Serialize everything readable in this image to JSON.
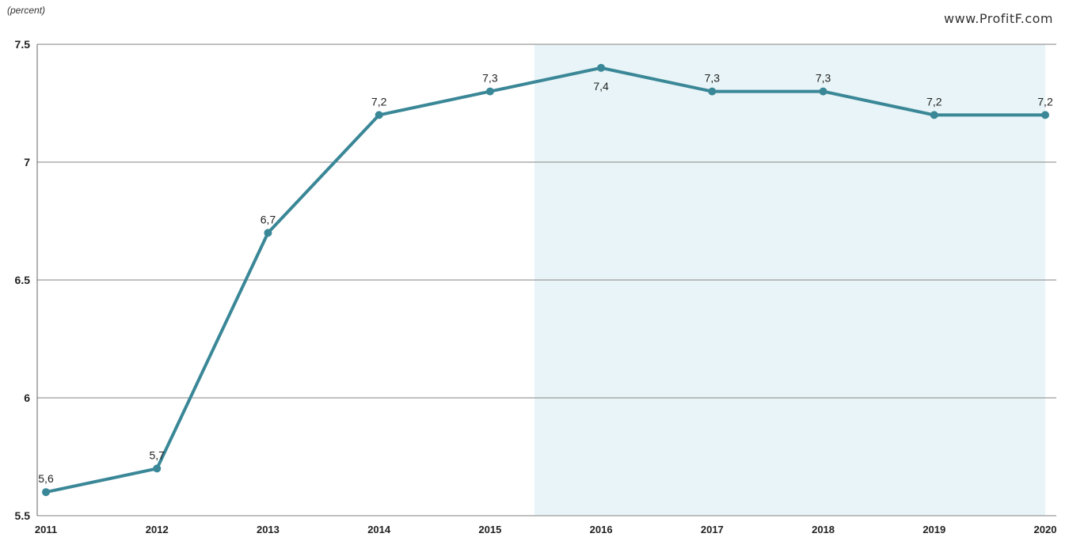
{
  "chart_data": {
    "type": "line",
    "unit_label": "(percent)",
    "watermark": "www.ProfitF.com",
    "categories": [
      "2011",
      "2012",
      "2013",
      "2014",
      "2015",
      "2016",
      "2017",
      "2018",
      "2019",
      "2020"
    ],
    "series": [
      {
        "values": [
          5.6,
          5.7,
          6.7,
          7.2,
          7.3,
          7.4,
          7.3,
          7.3,
          7.2,
          7.2
        ],
        "labels": [
          "5,6",
          "5,7",
          "6,7",
          "7,2",
          "7,3",
          "7,4",
          "7,3",
          "7,3",
          "7,2",
          "7,2"
        ],
        "color": "#3a8797"
      }
    ],
    "y_ticks": [
      "7.5",
      "7",
      "6.5",
      "6",
      "5.5"
    ],
    "y_tick_values": [
      7.5,
      7.0,
      6.5,
      6.0,
      5.5
    ],
    "ylim": [
      5.5,
      7.5
    ],
    "grid": true,
    "forecast_shading_from_year": "2015.4",
    "shading_color": "#e8f4f7",
    "grid_color": "#9a9a9a"
  }
}
